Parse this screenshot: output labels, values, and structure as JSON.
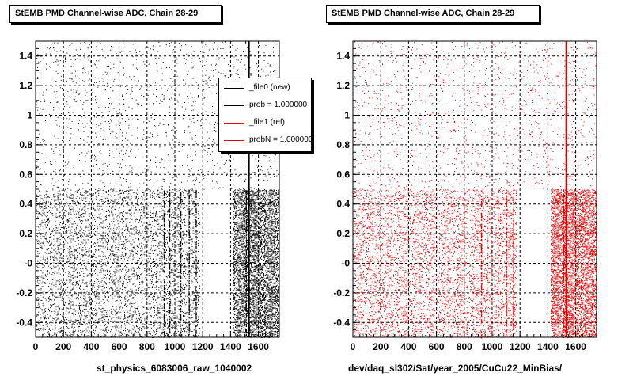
{
  "chart_data": [
    {
      "type": "scatter",
      "title": "StEMB PMD Channel-wise ADC, Chain 28-29",
      "xlabel": "st_physics_6083006_raw_1040002",
      "ylabel": "",
      "xlim": [
        0,
        1750
      ],
      "ylim": [
        -0.5,
        1.5
      ],
      "xticks": [
        "0",
        "200",
        "400",
        "600",
        "800",
        "1000",
        "1200",
        "1400",
        "1600"
      ],
      "yticks": [
        "-0.4",
        "-0.2",
        "-0",
        "0.2",
        "0.4",
        "0.6",
        "0.8",
        "1",
        "1.2",
        "1.4"
      ],
      "grid": true,
      "marker_color": "#000000",
      "series": [
        {
          "description_bands": [
            {
              "x_range": [
                0,
                1750
              ],
              "y_range": [
                0.5,
                1.5
              ],
              "density": "sparse"
            },
            {
              "x_range": [
                0,
                1180
              ],
              "y_range": [
                -0.5,
                0.5
              ],
              "density": "dense"
            },
            {
              "x_range": [
                1420,
                1750
              ],
              "y_range": [
                -0.5,
                0.5
              ],
              "density": "dense"
            }
          ],
          "strong_columns_x": [
            920,
            960,
            1040,
            1100,
            1150,
            1510,
            1530
          ]
        }
      ]
    },
    {
      "type": "scatter",
      "title": "StEMB PMD Channel-wise ADC, Chain 28-29",
      "xlabel": "dev/daq_sl302/Sat/year_2005/CuCu22_MinBias/",
      "ylabel": "",
      "xlim": [
        0,
        1750
      ],
      "ylim": [
        -0.5,
        1.5
      ],
      "xticks": [
        "0",
        "200",
        "400",
        "600",
        "800",
        "1000",
        "1200",
        "1400",
        "1600"
      ],
      "yticks": [
        "-0.4",
        "-0.2",
        "-0",
        "0.2",
        "0.4",
        "0.6",
        "0.8",
        "1",
        "1.2",
        "1.4"
      ],
      "grid": true,
      "marker_color": "#e00000",
      "series": [
        {
          "description_bands": [
            {
              "x_range": [
                0,
                1750
              ],
              "y_range": [
                0.5,
                1.5
              ],
              "density": "sparse"
            },
            {
              "x_range": [
                0,
                1180
              ],
              "y_range": [
                -0.5,
                0.5
              ],
              "density": "dense"
            },
            {
              "x_range": [
                1420,
                1750
              ],
              "y_range": [
                -0.5,
                0.5
              ],
              "density": "dense"
            }
          ],
          "strong_columns_x": [
            920,
            960,
            1040,
            1100,
            1150,
            1510,
            1530
          ]
        }
      ]
    }
  ],
  "legend": {
    "entries": [
      {
        "label": "_file0 (new)",
        "color": "#000000"
      },
      {
        "label": "prob = 1.000000",
        "color": "#000000"
      },
      {
        "label": "_file1 (ref)",
        "color": "#e00000"
      },
      {
        "label": "probN = 1.000000",
        "color": "#e00000"
      }
    ]
  }
}
